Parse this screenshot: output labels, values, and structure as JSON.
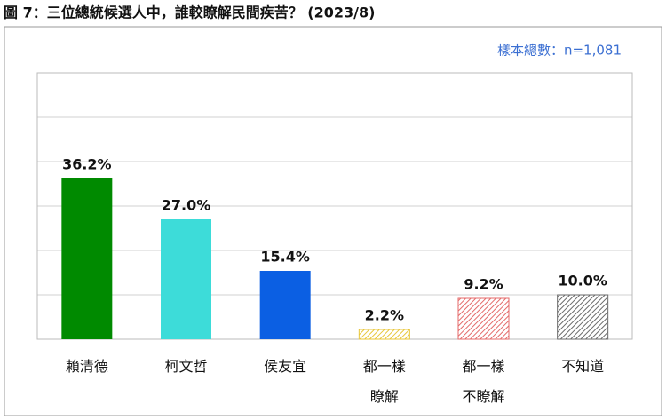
{
  "chart_data": {
    "type": "bar",
    "title": "圖 7：三位總統候選人中，誰較瞭解民間疾苦？ (2023/8)",
    "note": "樣本總數：n=1,081",
    "categories": [
      "賴清德",
      "柯文哲",
      "侯友宜",
      "都一樣瞭解",
      "都一樣不瞭解",
      "不知道"
    ],
    "values": [
      36.2,
      27.0,
      15.4,
      2.2,
      9.2,
      10.0
    ],
    "value_labels": [
      "36.2%",
      "27.0%",
      "15.4%",
      "2.2%",
      "9.2%",
      "10.0%"
    ],
    "colors": [
      "#008a00",
      "#3ddcd9",
      "#0b5fe3",
      "#e8c63a",
      "#e46a6a",
      "#6a6a6a"
    ],
    "hatched": [
      false,
      false,
      false,
      true,
      true,
      true
    ],
    "ylim": [
      0,
      60
    ],
    "yticks": [
      0,
      10,
      20,
      30,
      40,
      50,
      60
    ],
    "grid": true
  }
}
